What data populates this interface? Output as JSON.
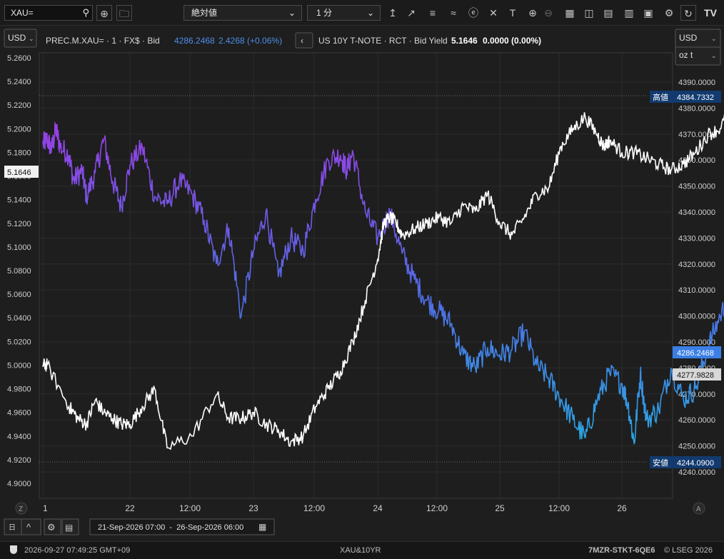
{
  "toolbar": {
    "symbol_input": "XAU=",
    "scale_mode": "絶対値",
    "interval": "1 分"
  },
  "legend": {
    "series1_desc": "PREC.M.XAU= · 1 · FX$ · Bid",
    "series1_last": "4286.2468",
    "series1_change": "2.4268 (+0.06%)",
    "series2_desc": "US 10Y T-NOTE · RCT · Bid Yield",
    "series2_last": "5.1646",
    "series2_change": "0.0000 (0.00%)"
  },
  "left_axis": {
    "currency": "USD",
    "badge": "5.1646"
  },
  "right_axis": {
    "currency": "USD",
    "unit": "oz t",
    "high_label": "高値",
    "high_value": "4384.7332",
    "low_label": "安値",
    "low_value": "4244.0900",
    "last_gold": "4286.2468",
    "last_other": "4277.9828"
  },
  "date_range": "21-Sep-2026 07:00  -  26-Sep-2026 06:00",
  "status": {
    "timestamp": "2026-09-27 07:49:25 GMT+09",
    "name": "XAU&10YR",
    "id": "7MZR-STKT-6QE6",
    "copyright": "© LSEG 2026"
  },
  "chart_data": {
    "type": "line",
    "x_ticks": [
      "1",
      "22",
      "12:00",
      "23",
      "12:00",
      "24",
      "12:00",
      "25",
      "12:00",
      "26"
    ],
    "left_axis": {
      "min": 4.9,
      "max": 5.26,
      "ticks": [
        "5.2600",
        "5.2400",
        "5.2200",
        "5.2000",
        "5.1800",
        "5.1600",
        "5.1400",
        "5.1200",
        "5.1000",
        "5.0800",
        "5.0600",
        "5.0400",
        "5.0200",
        "5.0000",
        "4.9800",
        "4.9600",
        "4.9400",
        "4.9200",
        "4.9000"
      ]
    },
    "right_axis": {
      "min": 4240,
      "max": 4390,
      "ticks": [
        "4390.0000",
        "4380.0000",
        "4370.0000",
        "4360.0000",
        "4350.0000",
        "4340.0000",
        "4330.0000",
        "4320.0000",
        "4310.0000",
        "4300.0000",
        "4290.0000",
        "4280.0000",
        "4270.0000",
        "4260.0000",
        "4250.0000",
        "4240.0000"
      ]
    },
    "series": [
      {
        "name": "PREC.M.XAU= · 1 · FX$ · Bid",
        "axis": "right",
        "x": [
          0,
          0.05,
          0.1,
          0.15,
          0.2,
          0.3,
          0.35,
          0.45,
          0.5,
          0.6,
          0.7,
          0.8,
          0.9,
          1.0,
          1.1,
          1.2,
          1.3,
          1.4,
          1.5,
          1.6,
          1.7,
          1.8,
          1.9,
          2.0,
          2.1,
          2.2,
          2.3,
          2.4,
          2.5,
          2.6,
          2.7,
          2.75,
          2.8,
          2.9,
          3.0,
          3.1,
          3.2,
          3.3,
          3.4,
          3.5,
          3.6,
          3.7,
          3.8,
          3.9,
          4.0,
          4.1,
          4.2,
          4.3,
          4.4,
          4.5,
          4.6,
          4.7,
          4.8,
          4.9,
          5.0,
          5.05,
          5.1,
          5.15,
          5.2,
          5.3,
          5.4,
          5.5,
          5.6,
          5.7,
          5.8,
          5.9,
          6.0,
          6.05,
          6.1,
          6.2,
          6.3,
          6.35
        ],
        "values": [
          4366,
          4368,
          4364,
          4372,
          4365,
          4362,
          4352,
          4356,
          4346,
          4355,
          4368,
          4352,
          4342,
          4358,
          4365,
          4346,
          4343,
          4352,
          4347,
          4337,
          4320,
          4334,
          4300,
          4325,
          4340,
          4315,
          4330,
          4325,
          4345,
          4360,
          4362,
          4356,
          4363,
          4340,
          4330,
          4340,
          4324,
          4314,
          4306,
          4302,
          4297,
          4285,
          4280,
          4288,
          4285,
          4287,
          4294,
          4281,
          4276,
          4268,
          4260,
          4253,
          4268,
          4278,
          4274,
          4266,
          4251,
          4278,
          4260,
          4264,
          4280,
          4268,
          4272,
          4288,
          4300,
          4310,
          4296,
          4276,
          4262,
          4278,
          4290,
          4285
        ]
      },
      {
        "name": "US 10Y T-NOTE · RCT · Bid Yield",
        "axis": "left",
        "x": [
          0,
          0.05,
          0.3,
          0.4,
          0.5,
          0.6,
          0.7,
          0.8,
          0.9,
          1.0,
          1.1,
          1.2,
          1.3,
          1.5,
          1.7,
          1.8,
          1.9,
          2.0,
          2.1,
          2.2,
          2.3,
          2.4,
          2.5,
          2.6,
          2.7,
          2.8,
          2.9,
          3.0,
          3.05,
          3.1,
          3.15,
          3.2,
          3.3,
          3.4,
          3.5,
          3.6,
          3.7,
          3.8,
          3.9,
          4.0,
          4.1,
          4.2,
          4.3,
          4.4,
          4.5,
          4.6,
          4.7,
          4.8,
          4.85,
          4.9,
          5.0,
          5.1,
          5.2,
          5.3,
          5.4,
          5.5,
          5.6,
          5.7,
          5.8,
          5.9,
          6.0,
          6.1,
          6.2,
          6.3,
          6.35
        ],
        "values": [
          5.0,
          5.0,
          4.965,
          4.955,
          4.95,
          4.97,
          4.96,
          4.955,
          4.95,
          4.95,
          4.965,
          4.98,
          4.93,
          4.94,
          4.975,
          4.955,
          4.955,
          4.96,
          4.95,
          4.945,
          4.935,
          4.94,
          4.965,
          4.98,
          4.995,
          5.02,
          5.055,
          5.09,
          5.12,
          5.125,
          5.12,
          5.11,
          5.115,
          5.12,
          5.125,
          5.12,
          5.135,
          5.13,
          5.145,
          5.12,
          5.11,
          5.125,
          5.145,
          5.15,
          5.185,
          5.2,
          5.21,
          5.195,
          5.185,
          5.19,
          5.18,
          5.18,
          5.175,
          5.17,
          5.165,
          5.17,
          5.18,
          5.195,
          5.2,
          5.22,
          5.2,
          5.195,
          5.175,
          5.16,
          5.1646
        ]
      }
    ]
  }
}
